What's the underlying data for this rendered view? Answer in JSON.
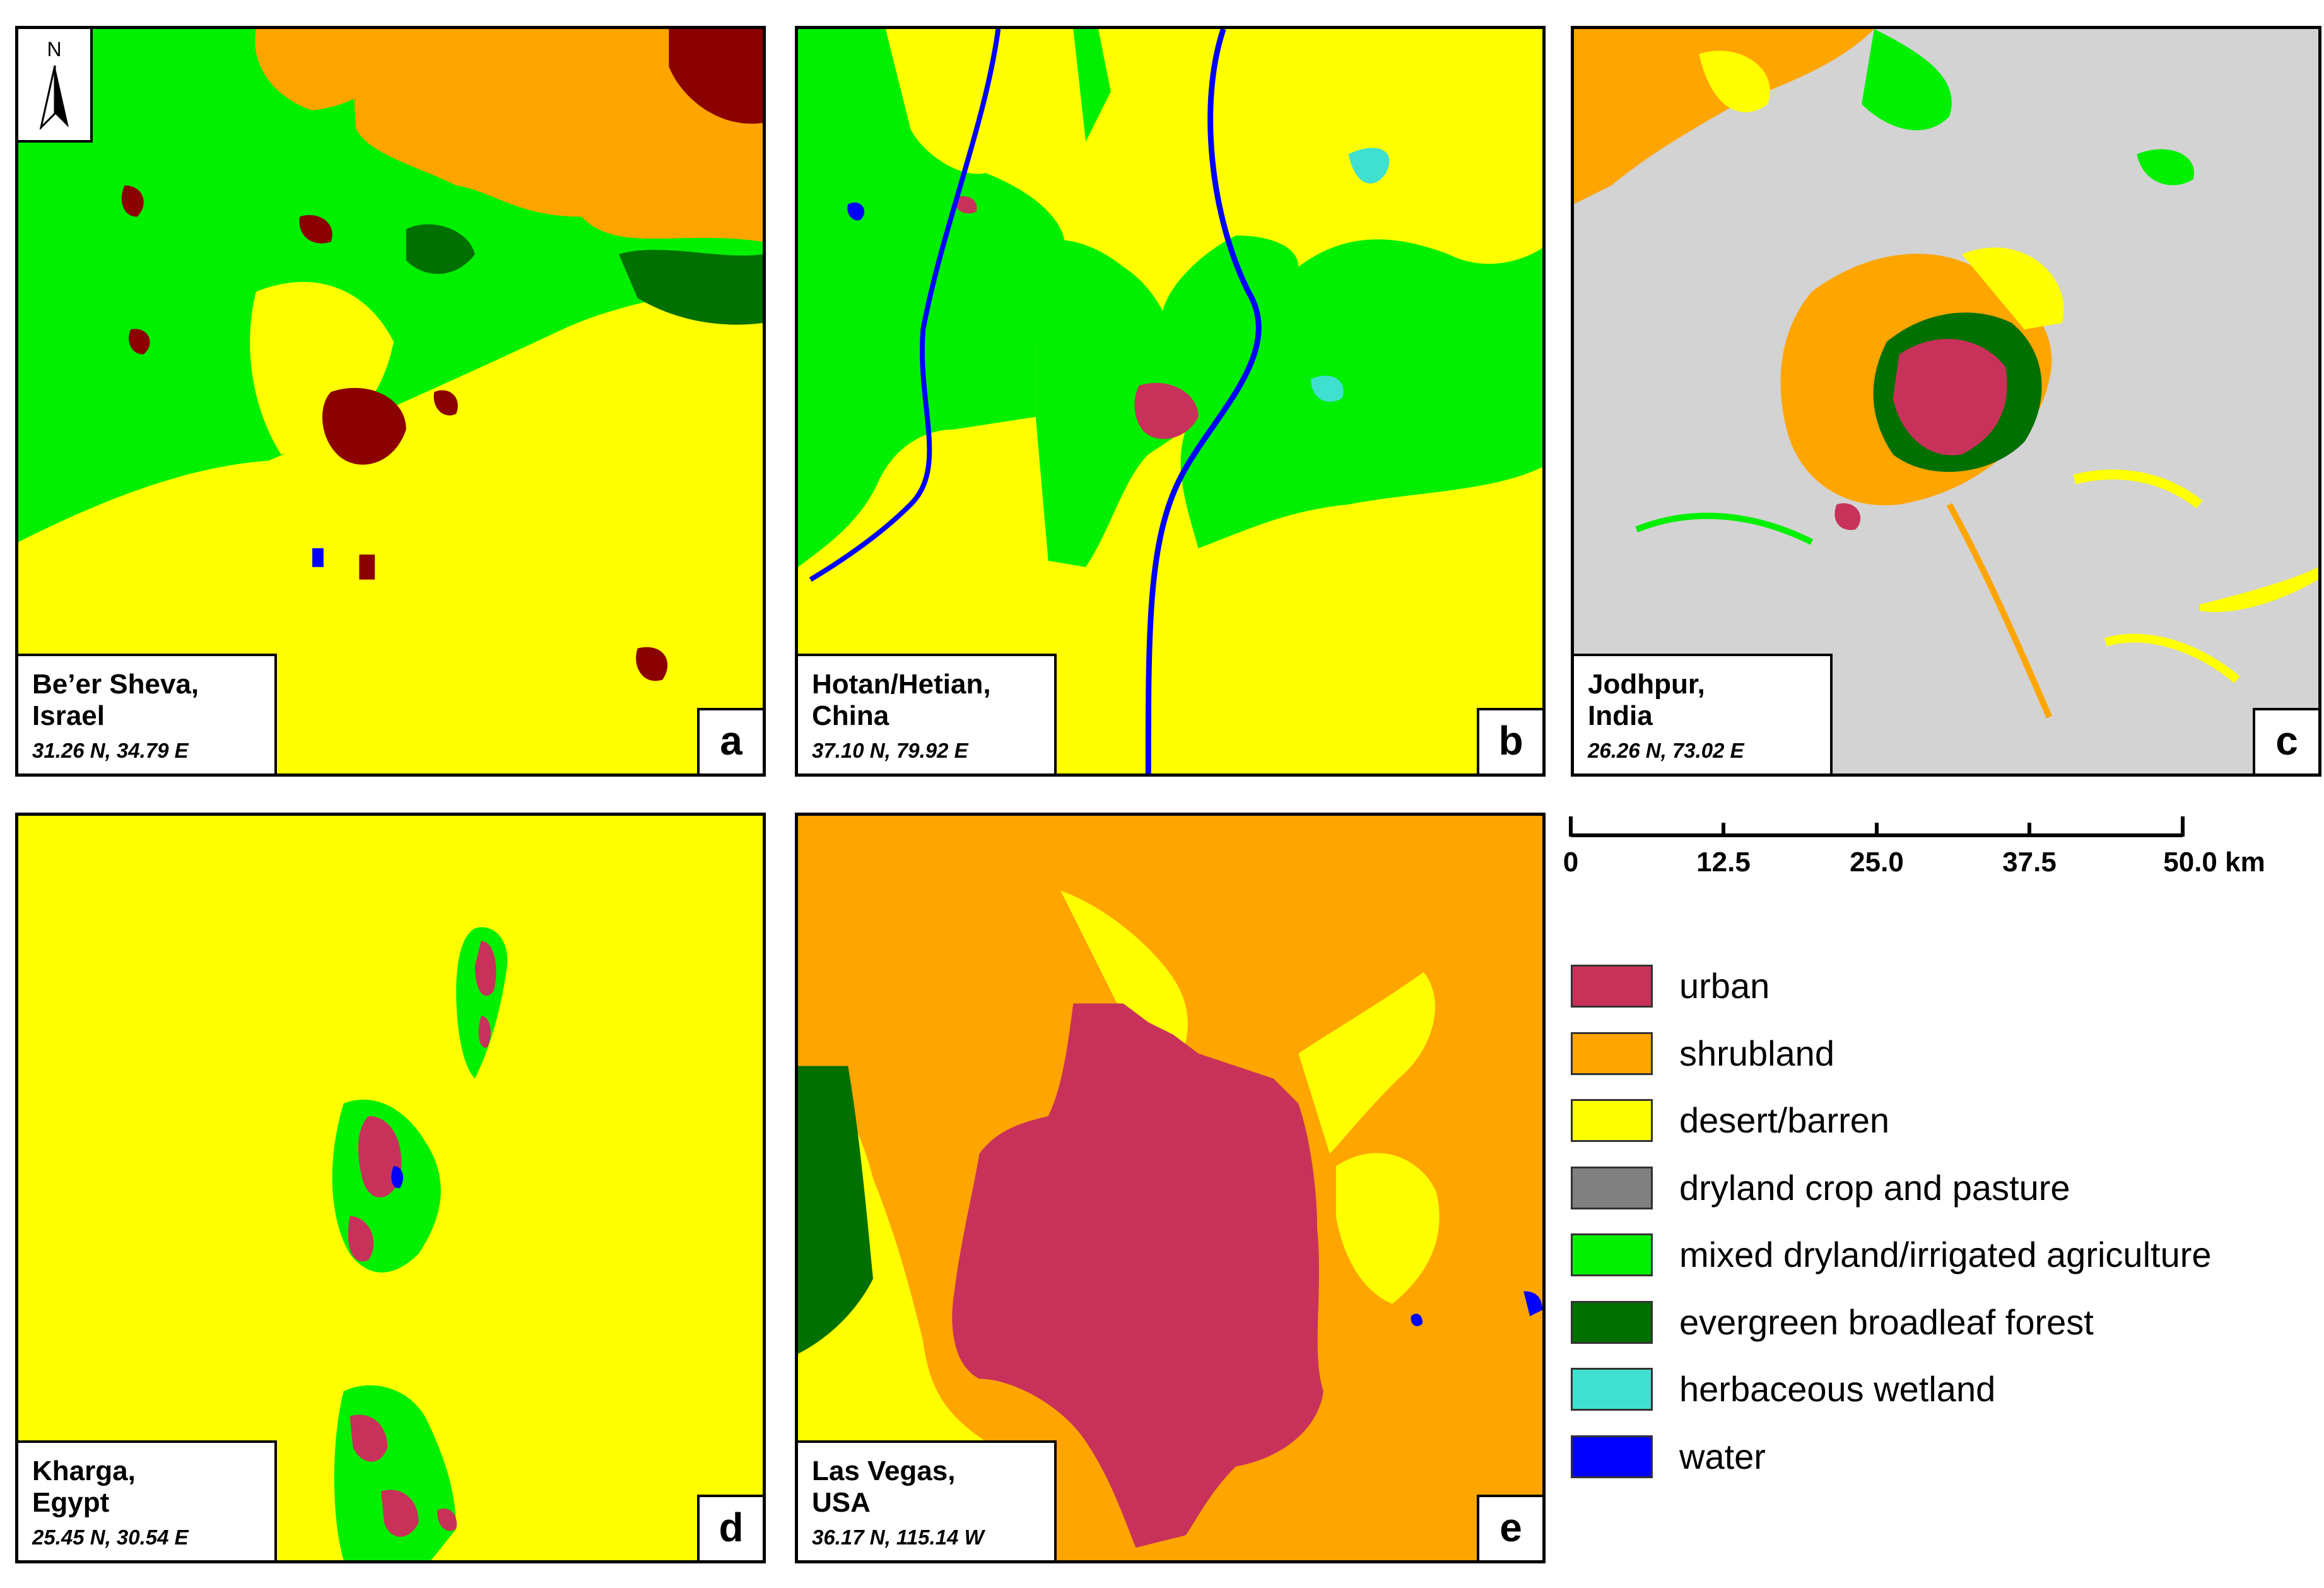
{
  "panels": [
    {
      "id": "a",
      "name": "Be’er Sheva,\nIsrael",
      "coords": "31.26 N, 34.79 E"
    },
    {
      "id": "b",
      "name": "Hotan/Hetian,\nChina",
      "coords": "37.10 N, 79.92 E"
    },
    {
      "id": "c",
      "name": "Jodhpur,\nIndia",
      "coords": "26.26 N, 73.02 E"
    },
    {
      "id": "d",
      "name": "Kharga,\nEgypt",
      "coords": "25.45 N, 30.54 E"
    },
    {
      "id": "e",
      "name": "Las Vegas,\nUSA",
      "coords": "36.17 N, 115.14 W"
    }
  ],
  "north_arrow": {
    "label": "N",
    "icon": "north-arrow-icon"
  },
  "scale_bar": {
    "ticks": [
      "0",
      "12.5",
      "25.0",
      "37.5",
      "50.0 km"
    ]
  },
  "legend": [
    {
      "label": "urban",
      "color": "#C8325A"
    },
    {
      "label": "shrubland",
      "color": "#FFA500"
    },
    {
      "label": "desert/barren",
      "color": "#FFFF00"
    },
    {
      "label": "dryland crop and pasture",
      "color": "#808080"
    },
    {
      "label": "mixed dryland/irrigated agriculture",
      "color": "#00F000"
    },
    {
      "label": "evergreen broadleaf forest",
      "color": "#007000"
    },
    {
      "label": "herbaceous wetland",
      "color": "#40E0D0"
    },
    {
      "label": "water",
      "color": "#0000FF"
    }
  ],
  "colors": {
    "urban": "#C8325A",
    "urban_dark": "#8B0000",
    "shrubland": "#FFA500",
    "desert": "#FFFF00",
    "crop": "#808080",
    "light_gray": "#D3D3D3",
    "agriculture": "#00F000",
    "forest": "#007000",
    "wetland": "#40E0D0",
    "water": "#0000FF"
  }
}
